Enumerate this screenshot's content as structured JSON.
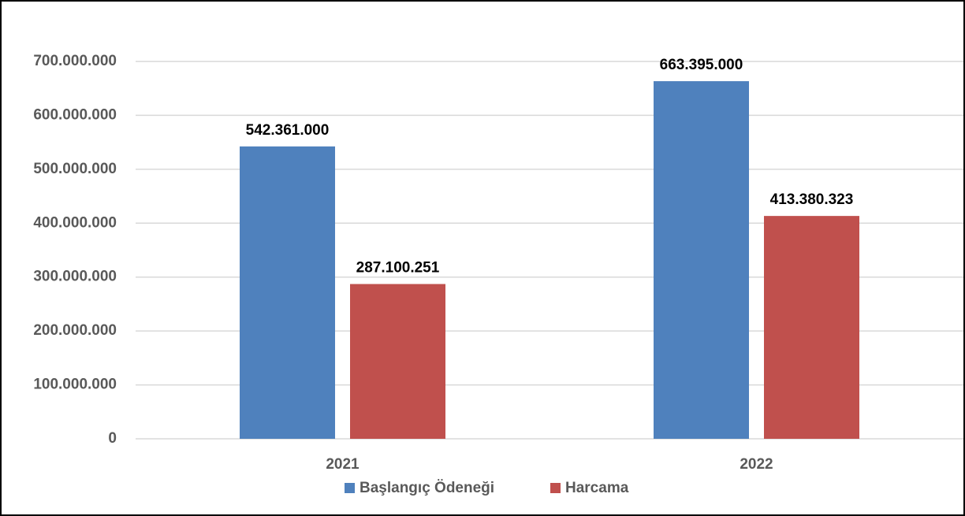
{
  "chart_data": {
    "type": "bar",
    "categories": [
      "2021",
      "2022"
    ],
    "series": [
      {
        "name": "Başlangıç Ödeneği",
        "color": "#4f81bd",
        "values": [
          542361000,
          663395000
        ],
        "value_labels": [
          "542.361.000",
          "663.395.000"
        ]
      },
      {
        "name": "Harcama",
        "color": "#c0504d",
        "values": [
          287100251,
          413380323
        ],
        "value_labels": [
          "287.100.251",
          "413.380.323"
        ]
      }
    ],
    "ylim": [
      0,
      700000000
    ],
    "yticks": [
      {
        "value": 0,
        "label": "0"
      },
      {
        "value": 100000000,
        "label": "100.000.000"
      },
      {
        "value": 200000000,
        "label": "200.000.000"
      },
      {
        "value": 300000000,
        "label": "300.000.000"
      },
      {
        "value": 400000000,
        "label": "400.000.000"
      },
      {
        "value": 500000000,
        "label": "500.000.000"
      },
      {
        "value": 600000000,
        "label": "600.000.000"
      },
      {
        "value": 700000000,
        "label": "700.000.000"
      }
    ],
    "grid": true,
    "legend": "bottom"
  }
}
